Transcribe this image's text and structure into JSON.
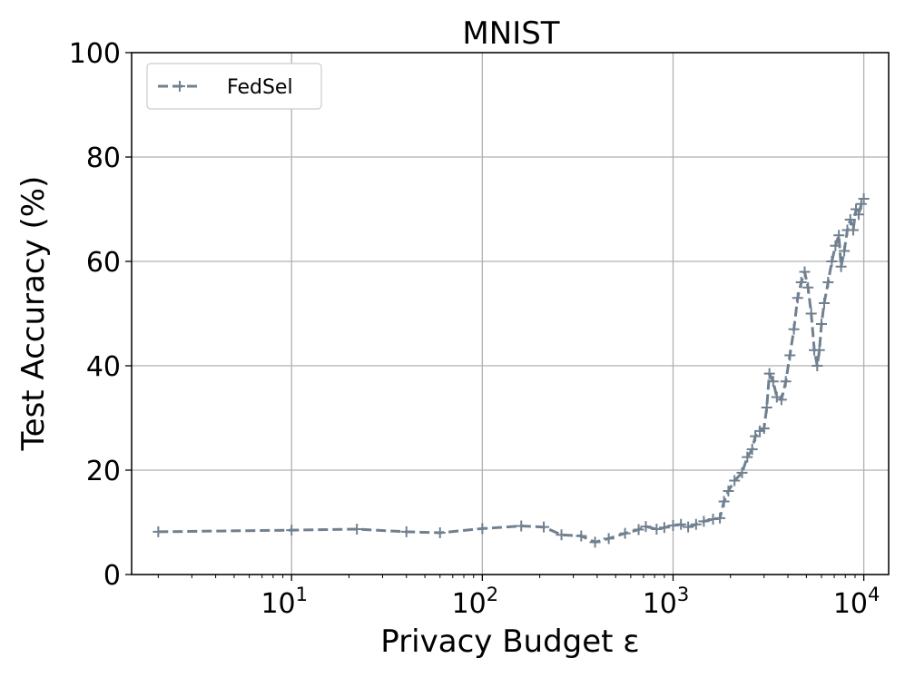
{
  "chart_data": {
    "type": "line",
    "title": "MNIST",
    "xlabel": "Privacy Budget ε",
    "ylabel": "Test Accuracy (%)",
    "xscale": "log",
    "xlim": [
      1.45,
      13500
    ],
    "ylim": [
      0,
      100
    ],
    "grid": true,
    "legend_position": "top-left",
    "xticks": [
      {
        "value": 10,
        "base": "10",
        "exp": "1"
      },
      {
        "value": 100,
        "base": "10",
        "exp": "2"
      },
      {
        "value": 1000,
        "base": "10",
        "exp": "3"
      },
      {
        "value": 10000,
        "base": "10",
        "exp": "4"
      }
    ],
    "yticks": [
      {
        "value": 0,
        "label": "0"
      },
      {
        "value": 20,
        "label": "20"
      },
      {
        "value": 40,
        "label": "40"
      },
      {
        "value": 60,
        "label": "60"
      },
      {
        "value": 80,
        "label": "80"
      },
      {
        "value": 100,
        "label": "100"
      }
    ],
    "series": [
      {
        "name": "FedSel",
        "color": "#708090",
        "linestyle": "dashed",
        "marker": "+",
        "points": [
          [
            2,
            8.2
          ],
          [
            10,
            8.5
          ],
          [
            22,
            8.7
          ],
          [
            40,
            8.2
          ],
          [
            60,
            8.0
          ],
          [
            100,
            8.8
          ],
          [
            160,
            9.3
          ],
          [
            210,
            9.1
          ],
          [
            260,
            7.6
          ],
          [
            330,
            7.4
          ],
          [
            390,
            6.2
          ],
          [
            460,
            6.9
          ],
          [
            560,
            7.9
          ],
          [
            660,
            8.6
          ],
          [
            720,
            9.2
          ],
          [
            820,
            8.7
          ],
          [
            900,
            9.0
          ],
          [
            1000,
            9.4
          ],
          [
            1100,
            9.6
          ],
          [
            1200,
            9.1
          ],
          [
            1320,
            9.6
          ],
          [
            1450,
            10.2
          ],
          [
            1620,
            10.6
          ],
          [
            1760,
            10.8
          ],
          [
            1850,
            14.0
          ],
          [
            1950,
            16.0
          ],
          [
            2100,
            18.0
          ],
          [
            2300,
            19.5
          ],
          [
            2450,
            22.5
          ],
          [
            2600,
            24.0
          ],
          [
            2700,
            26.5
          ],
          [
            2850,
            27.5
          ],
          [
            3000,
            28.0
          ],
          [
            3100,
            32.0
          ],
          [
            3200,
            38.5
          ],
          [
            3350,
            37.0
          ],
          [
            3500,
            34.0
          ],
          [
            3700,
            33.5
          ],
          [
            3900,
            37.0
          ],
          [
            4100,
            42.0
          ],
          [
            4300,
            47.0
          ],
          [
            4500,
            53.0
          ],
          [
            4700,
            56.0
          ],
          [
            4900,
            58.0
          ],
          [
            5100,
            55.0
          ],
          [
            5300,
            50.0
          ],
          [
            5500,
            43.0
          ],
          [
            5700,
            40.0
          ],
          [
            5850,
            43.0
          ],
          [
            6000,
            48.0
          ],
          [
            6200,
            52.0
          ],
          [
            6500,
            56.0
          ],
          [
            6800,
            60.0
          ],
          [
            7100,
            63.0
          ],
          [
            7400,
            65.0
          ],
          [
            7600,
            59.0
          ],
          [
            7900,
            62.0
          ],
          [
            8200,
            66.0
          ],
          [
            8500,
            68.0
          ],
          [
            8800,
            66.0
          ],
          [
            9100,
            70.0
          ],
          [
            9400,
            69.0
          ],
          [
            9700,
            71.0
          ],
          [
            10000,
            72.0
          ]
        ]
      }
    ]
  }
}
